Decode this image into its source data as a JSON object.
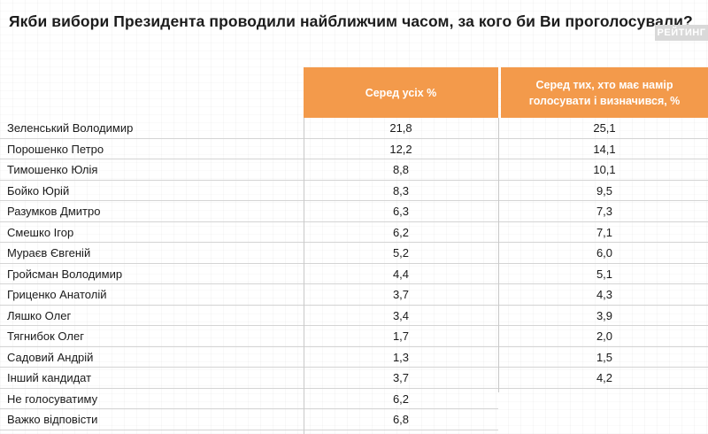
{
  "title": "Якби вибори Президента проводили найближчим часом, за кого би Ви проголосували?",
  "brand": "РЕЙТИНГ",
  "columns": [
    "Серед усіх %",
    "Серед тих, хто має намір голосувати і визначився, %"
  ],
  "rows": [
    {
      "name": "Зеленський Володимир",
      "all": "21,8",
      "decided": "25,1"
    },
    {
      "name": "Порошенко Петро",
      "all": "12,2",
      "decided": "14,1"
    },
    {
      "name": "Тимошенко Юлія",
      "all": "8,8",
      "decided": "10,1"
    },
    {
      "name": "Бойко Юрій",
      "all": "8,3",
      "decided": "9,5"
    },
    {
      "name": "Разумков Дмитро",
      "all": "6,3",
      "decided": "7,3"
    },
    {
      "name": "Смешко Ігор",
      "all": "6,2",
      "decided": "7,1"
    },
    {
      "name": "Мураєв Євгеній",
      "all": "5,2",
      "decided": "6,0"
    },
    {
      "name": "Гройсман Володимир",
      "all": "4,4",
      "decided": "5,1"
    },
    {
      "name": "Гриценко Анатолій",
      "all": "3,7",
      "decided": "4,3"
    },
    {
      "name": "Ляшко Олег",
      "all": "3,4",
      "decided": "3,9"
    },
    {
      "name": "Тягнибок Олег",
      "all": "1,7",
      "decided": "2,0"
    },
    {
      "name": "Садовий Андрій",
      "all": "1,3",
      "decided": "1,5"
    },
    {
      "name": "Інший кандидат",
      "all": "3,7",
      "decided": "4,2"
    },
    {
      "name": "Не голосуватиму",
      "all": "6,2",
      "decided": ""
    },
    {
      "name": "Важко відповісти",
      "all": "6,8",
      "decided": ""
    }
  ],
  "colors": {
    "header_bg": "#f39a4b",
    "header_text": "#ffffff",
    "brand_bg": "#d9d9d9",
    "text": "#1a1a1a",
    "row_line": "#d4d4d4"
  }
}
